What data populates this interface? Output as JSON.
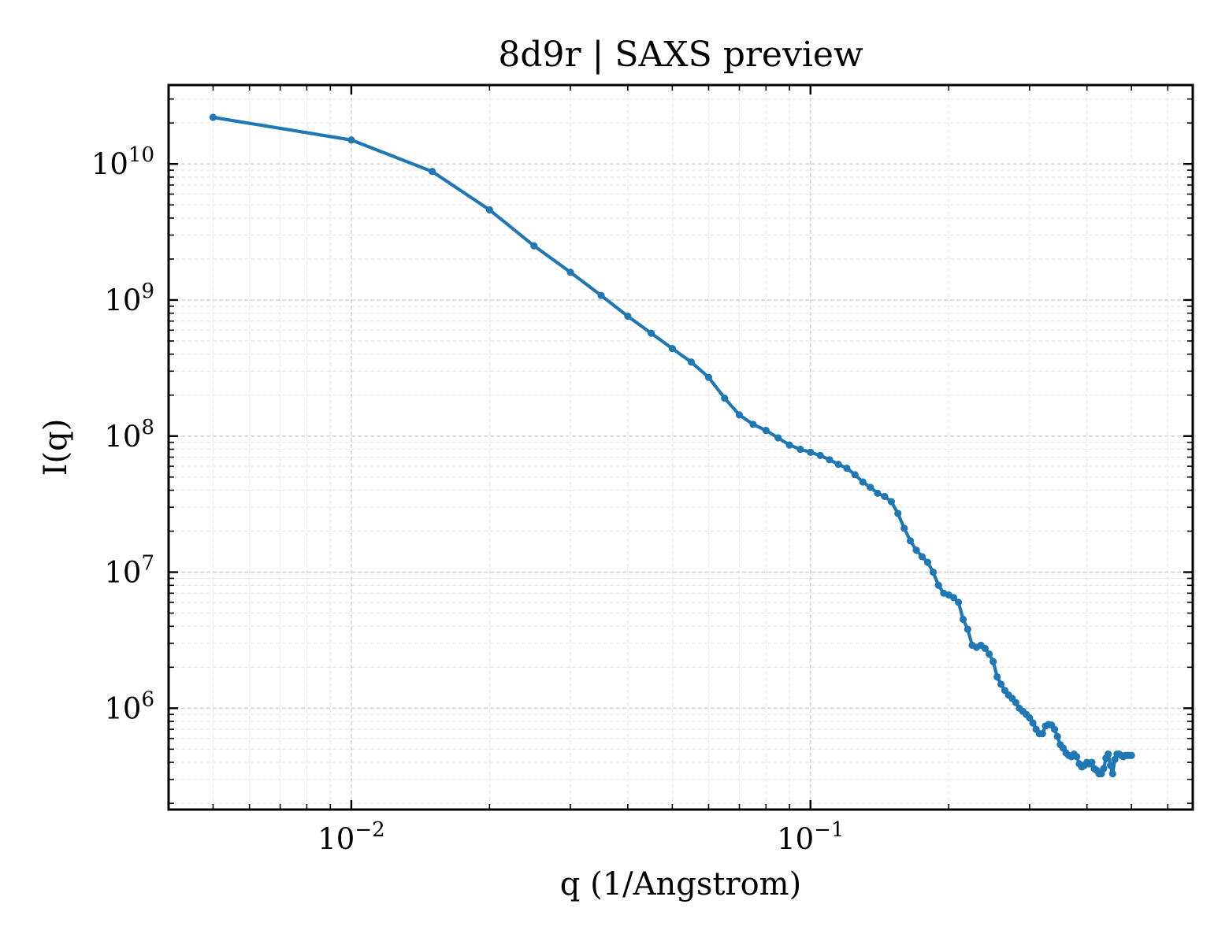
{
  "chart_data": {
    "type": "line",
    "title": "8d9r | SAXS preview",
    "xlabel": "q (1/Angstrom)",
    "ylabel": "I(q)",
    "x_scale": "log",
    "y_scale": "log",
    "xlim": [
      0.004,
      0.68
    ],
    "ylim": [
      180000,
      38000000000
    ],
    "grid": true,
    "x_ticks": [
      {
        "value": 0.01,
        "base": "10",
        "exp": "−2"
      },
      {
        "value": 0.1,
        "base": "10",
        "exp": "−1"
      }
    ],
    "y_ticks": [
      {
        "value": 1000000,
        "base": "10",
        "exp": "6"
      },
      {
        "value": 10000000,
        "base": "10",
        "exp": "7"
      },
      {
        "value": 100000000,
        "base": "10",
        "exp": "8"
      },
      {
        "value": 1000000000,
        "base": "10",
        "exp": "9"
      },
      {
        "value": 10000000000,
        "base": "10",
        "exp": "10"
      }
    ],
    "series": [
      {
        "color": "#1f77b4",
        "x": [
          0.005,
          0.01,
          0.015,
          0.02,
          0.025,
          0.03,
          0.035,
          0.04,
          0.045,
          0.05,
          0.055,
          0.06,
          0.065,
          0.07,
          0.075,
          0.08,
          0.085,
          0.09,
          0.095,
          0.1,
          0.105,
          0.11,
          0.115,
          0.12,
          0.125,
          0.13,
          0.135,
          0.14,
          0.145,
          0.15,
          0.155,
          0.16,
          0.165,
          0.17,
          0.175,
          0.18,
          0.185,
          0.19,
          0.195,
          0.2,
          0.205,
          0.21,
          0.215,
          0.22,
          0.225,
          0.23,
          0.235,
          0.24,
          0.245,
          0.25,
          0.255,
          0.26,
          0.265,
          0.27,
          0.275,
          0.28,
          0.285,
          0.29,
          0.295,
          0.3,
          0.305,
          0.31,
          0.315,
          0.32,
          0.325,
          0.33,
          0.335,
          0.34,
          0.345,
          0.35,
          0.355,
          0.36,
          0.365,
          0.37,
          0.375,
          0.38,
          0.385,
          0.39,
          0.395,
          0.4,
          0.405,
          0.41,
          0.415,
          0.42,
          0.425,
          0.43,
          0.435,
          0.44,
          0.445,
          0.45,
          0.455,
          0.46,
          0.465,
          0.47,
          0.475,
          0.48,
          0.485,
          0.49,
          0.495,
          0.5
        ],
        "y": [
          22000000000,
          15000000000,
          8800000000,
          4600000000,
          2500000000,
          1600000000,
          1080000000,
          760000000,
          570000000,
          440000000,
          350000000,
          270000000,
          190000000,
          143000000,
          122000000,
          110000000,
          97000000,
          86000000,
          80000000,
          76000000,
          72000000,
          67000000,
          62000000,
          58000000,
          52000000,
          46000000,
          42000000,
          38000000,
          36000000,
          33000000,
          27000000,
          21000000,
          17000000,
          14500000,
          13000000,
          11800000,
          10000000,
          8000000,
          7000000,
          6800000,
          6500000,
          6000000,
          4500000,
          3800000,
          2900000,
          2800000,
          2900000,
          2750000,
          2500000,
          2200000,
          1700000,
          1500000,
          1350000,
          1250000,
          1180000,
          1100000,
          1000000,
          950000,
          900000,
          850000,
          780000,
          700000,
          650000,
          650000,
          740000,
          760000,
          750000,
          700000,
          620000,
          540000,
          510000,
          470000,
          450000,
          440000,
          460000,
          440000,
          390000,
          370000,
          380000,
          400000,
          390000,
          400000,
          360000,
          350000,
          330000,
          330000,
          360000,
          430000,
          460000,
          380000,
          330000,
          420000,
          460000,
          460000,
          450000,
          440000,
          450000,
          450000,
          450000,
          450000
        ]
      }
    ]
  }
}
